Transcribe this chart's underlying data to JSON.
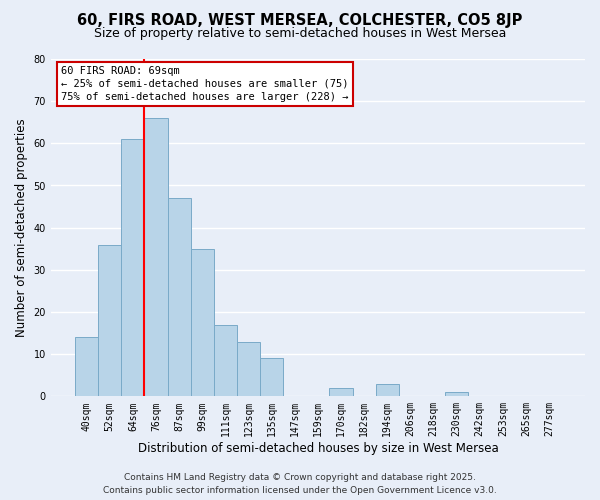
{
  "title": "60, FIRS ROAD, WEST MERSEA, COLCHESTER, CO5 8JP",
  "subtitle": "Size of property relative to semi-detached houses in West Mersea",
  "xlabel": "Distribution of semi-detached houses by size in West Mersea",
  "ylabel": "Number of semi-detached properties",
  "bar_labels": [
    "40sqm",
    "52sqm",
    "64sqm",
    "76sqm",
    "87sqm",
    "99sqm",
    "111sqm",
    "123sqm",
    "135sqm",
    "147sqm",
    "159sqm",
    "170sqm",
    "182sqm",
    "194sqm",
    "206sqm",
    "218sqm",
    "230sqm",
    "242sqm",
    "253sqm",
    "265sqm",
    "277sqm"
  ],
  "bar_heights": [
    14,
    36,
    61,
    66,
    47,
    35,
    17,
    13,
    9,
    0,
    0,
    2,
    0,
    3,
    0,
    0,
    1,
    0,
    0,
    0,
    0
  ],
  "bar_color": "#b8d4e8",
  "bar_edge_color": "#7aaac8",
  "red_line_x": 2.5,
  "annotation_line1": "60 FIRS ROAD: 69sqm",
  "annotation_line2": "← 25% of semi-detached houses are smaller (75)",
  "annotation_line3": "75% of semi-detached houses are larger (228) →",
  "annotation_box_color": "#ffffff",
  "annotation_box_edge": "#cc0000",
  "ylim": [
    0,
    80
  ],
  "yticks": [
    0,
    10,
    20,
    30,
    40,
    50,
    60,
    70,
    80
  ],
  "footer_line1": "Contains HM Land Registry data © Crown copyright and database right 2025.",
  "footer_line2": "Contains public sector information licensed under the Open Government Licence v3.0.",
  "background_color": "#e8eef8",
  "grid_color": "#ffffff",
  "title_fontsize": 10.5,
  "subtitle_fontsize": 9,
  "axis_label_fontsize": 8.5,
  "tick_fontsize": 7,
  "annotation_fontsize": 7.5,
  "footer_fontsize": 6.5
}
